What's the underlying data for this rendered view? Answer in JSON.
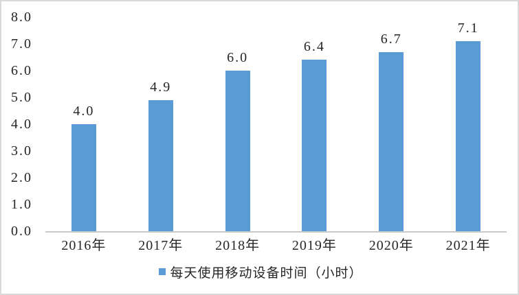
{
  "chart_data": {
    "type": "bar",
    "categories": [
      "2016年",
      "2017年",
      "2018年",
      "2019年",
      "2020年",
      "2021年"
    ],
    "values": [
      4.0,
      4.9,
      6.0,
      6.4,
      6.7,
      7.1
    ],
    "data_labels": [
      "4.0",
      "4.9",
      "6.0",
      "6.4",
      "6.7",
      "7.1"
    ],
    "yticks": [
      "0.0",
      "1.0",
      "2.0",
      "3.0",
      "4.0",
      "5.0",
      "6.0",
      "7.0",
      "8.0"
    ],
    "ylim": [
      0,
      8
    ],
    "grid": false,
    "title": "",
    "xlabel": "",
    "ylabel": "",
    "legend": {
      "label": "每天使用移动设备时间（小时）",
      "position": "bottom"
    },
    "colors": {
      "bar": "#5b9bd5",
      "axis_line": "#c9c9c9",
      "text": "#262626",
      "frame_border": "#d9d9d9",
      "background": "#ffffff"
    }
  }
}
